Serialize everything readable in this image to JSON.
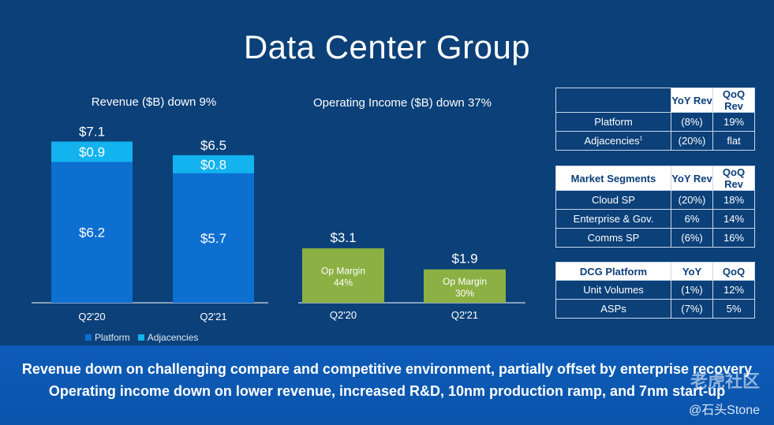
{
  "title": "Data Center Group",
  "chart_data": [
    {
      "type": "bar",
      "title": "Revenue ($B) down 9%",
      "categories": [
        "Q2'20",
        "Q2'21"
      ],
      "stacked": true,
      "series": [
        {
          "name": "Platform",
          "values": [
            6.2,
            5.7
          ],
          "labels": [
            "$6.2",
            "$5.7"
          ],
          "color": "#0d6fd0"
        },
        {
          "name": "Adjacencies",
          "values": [
            0.9,
            0.8
          ],
          "labels": [
            "$0.9",
            "$0.8"
          ],
          "color": "#12b3ee"
        }
      ],
      "totals": [
        "$7.1",
        "$6.5"
      ],
      "legend": "bottom"
    },
    {
      "type": "bar",
      "title": "Operating Income ($B) down 37%",
      "categories": [
        "Q2'20",
        "Q2'21"
      ],
      "series": [
        {
          "values": [
            3.1,
            1.9
          ],
          "labels": [
            "$3.1",
            "$1.9"
          ],
          "color": "#8cb043"
        }
      ],
      "bar_text_prefix": "Op Margin",
      "bar_text": [
        "44%",
        "30%"
      ]
    }
  ],
  "tables": [
    {
      "header": [
        "",
        "YoY Rev",
        "QoQ Rev"
      ],
      "rows": [
        [
          "Platform",
          "(8%)",
          "19%"
        ],
        [
          "Adjacencies",
          "(20%)",
          "flat"
        ]
      ],
      "footnote_mark": "1"
    },
    {
      "header": [
        "Market Segments",
        "YoY Rev",
        "QoQ Rev"
      ],
      "rows": [
        [
          "Cloud SP",
          "(20%)",
          "18%"
        ],
        [
          "Enterprise & Gov.",
          "6%",
          "14%"
        ],
        [
          "Comms SP",
          "(6%)",
          "16%"
        ]
      ]
    },
    {
      "header": [
        "DCG Platform",
        "YoY",
        "QoQ"
      ],
      "rows": [
        [
          "Unit Volumes",
          "(1%)",
          "12%"
        ],
        [
          "ASPs",
          "(7%)",
          "5%"
        ]
      ]
    }
  ],
  "footer": {
    "line1": "Revenue down on challenging compare and competitive environment, partially offset by enterprise recovery",
    "line2": "Operating income down on lower revenue, increased R&D, 10nm production ramp, and 7nm start-up"
  },
  "watermark": {
    "logo_text": "老虎社区",
    "handle": "@石头Stone"
  },
  "colors": {
    "background": "#0b4079",
    "platform": "#0d6fd0",
    "adjacencies": "#12b3ee",
    "op_income": "#8cb043",
    "footer": "#0d5cb8"
  }
}
